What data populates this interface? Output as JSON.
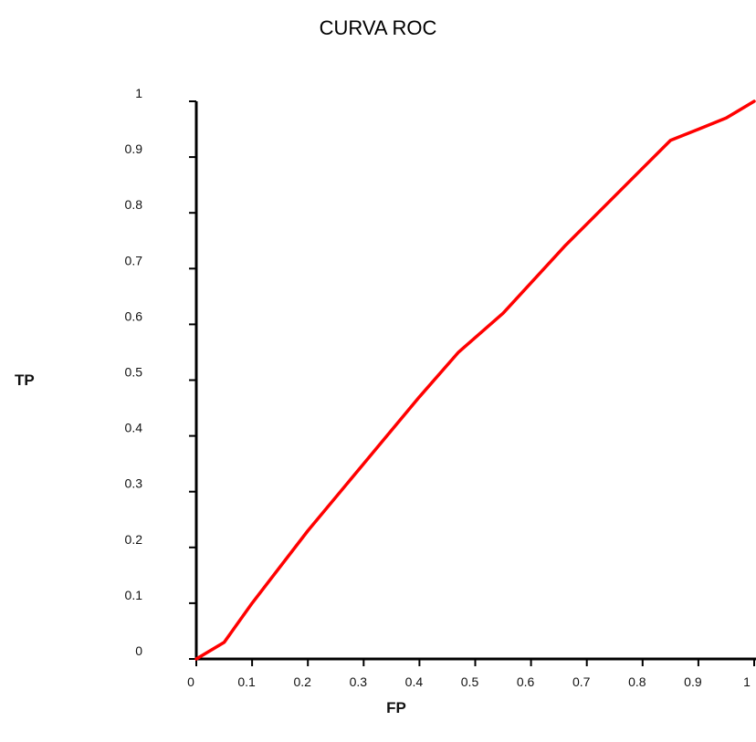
{
  "chart_data": {
    "type": "line",
    "title": "CURVA ROC",
    "xlabel": "FP",
    "ylabel": "TP",
    "xlim": [
      0,
      1
    ],
    "ylim": [
      0,
      1
    ],
    "x_ticks": [
      "0",
      "0.1",
      "0.2",
      "0.3",
      "0.4",
      "0.5",
      "0.6",
      "0.7",
      "0.8",
      "0.9",
      "1"
    ],
    "y_ticks": [
      "0",
      "0.1",
      "0.2",
      "0.3",
      "0.4",
      "0.5",
      "0.6",
      "0.7",
      "0.8",
      "0.9",
      "1"
    ],
    "grid": false,
    "series": [
      {
        "color": "#ff0000",
        "x": [
          0,
          0.05,
          0.1,
          0.2,
          0.3,
          0.4,
          0.47,
          0.55,
          0.66,
          0.8,
          0.85,
          0.9,
          0.95,
          1.0
        ],
        "y": [
          0,
          0.03,
          0.1,
          0.23,
          0.35,
          0.47,
          0.55,
          0.62,
          0.74,
          0.88,
          0.93,
          0.95,
          0.97,
          1.0
        ]
      }
    ]
  }
}
